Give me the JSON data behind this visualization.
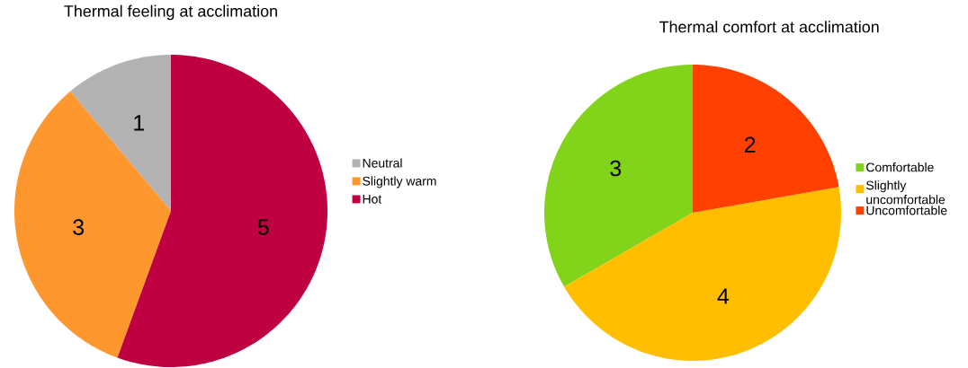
{
  "chart_data": [
    {
      "type": "pie",
      "title": "Thermal feeling at acclimation",
      "categories": [
        "Neutral",
        "Slightly warm",
        "Hot"
      ],
      "values": [
        1,
        3,
        5
      ],
      "colors": [
        "#b3b3b3",
        "#ff972f",
        "#bf0041"
      ],
      "data_labels": true,
      "legend": "right"
    },
    {
      "type": "pie",
      "title": "Thermal comfort at acclimation",
      "categories": [
        "Comfortable",
        "Slightly uncomfortable",
        "Uncomfortable"
      ],
      "values": [
        3,
        4,
        2
      ],
      "colors": [
        "#81d41a",
        "#ffbf00",
        "#ff4000"
      ],
      "data_labels": true,
      "legend": "right"
    }
  ]
}
